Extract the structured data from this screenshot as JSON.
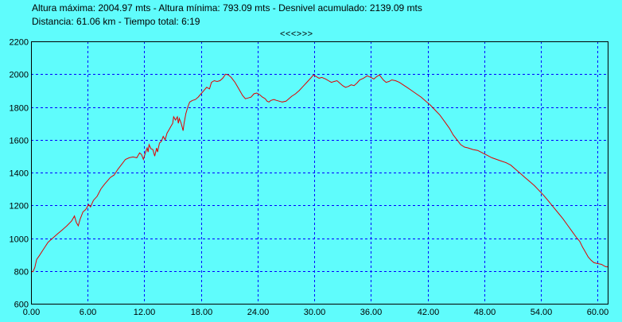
{
  "header": {
    "line1": "Altura máxima: 2004.97 mts - Altura mínima: 793.09 mts - Desnivel acumulado: 2139.09 mts",
    "line2": "Distancia: 61.06 km - Tiempo total: 6:19",
    "nav": "<<<>>>"
  },
  "chart_data": {
    "type": "line",
    "grid": true,
    "xlim": [
      0,
      61.06
    ],
    "ylim": [
      600,
      2200
    ],
    "x_ticks": [
      0,
      6,
      12,
      18,
      24,
      30,
      36,
      42,
      48,
      54,
      60
    ],
    "x_tick_labels": [
      "0.00",
      "6.00",
      "12.00",
      "18.00",
      "24.00",
      "30.00",
      "36.00",
      "42.00",
      "48.00",
      "54.00",
      "60.00"
    ],
    "y_ticks": [
      600,
      800,
      1000,
      1200,
      1400,
      1600,
      1800,
      2000,
      2200
    ],
    "y_tick_labels": [
      "600",
      "800",
      "1000",
      "1200",
      "1400",
      "1600",
      "1800",
      "2000",
      "2200"
    ],
    "colors": {
      "background": "#5ffcfc",
      "line": "#e00000",
      "grid": "#0000ff",
      "axes": "#000000"
    },
    "series": [
      {
        "values": [
          [
            0,
            800
          ],
          [
            0.2,
            795
          ],
          [
            0.4,
            820
          ],
          [
            0.6,
            870
          ],
          [
            0.9,
            895
          ],
          [
            1.3,
            930
          ],
          [
            1.8,
            975
          ],
          [
            2.3,
            1000
          ],
          [
            2.8,
            1025
          ],
          [
            3.3,
            1050
          ],
          [
            3.8,
            1075
          ],
          [
            4.3,
            1105
          ],
          [
            4.6,
            1135
          ],
          [
            4.8,
            1095
          ],
          [
            5.0,
            1075
          ],
          [
            5.2,
            1115
          ],
          [
            5.5,
            1160
          ],
          [
            5.8,
            1175
          ],
          [
            6.1,
            1205
          ],
          [
            6.3,
            1190
          ],
          [
            6.6,
            1230
          ],
          [
            7.0,
            1255
          ],
          [
            7.4,
            1300
          ],
          [
            7.8,
            1330
          ],
          [
            8.1,
            1350
          ],
          [
            8.4,
            1370
          ],
          [
            8.8,
            1385
          ],
          [
            9.2,
            1420
          ],
          [
            9.6,
            1450
          ],
          [
            10.0,
            1480
          ],
          [
            10.4,
            1490
          ],
          [
            10.8,
            1495
          ],
          [
            11.2,
            1490
          ],
          [
            11.5,
            1520
          ],
          [
            11.7,
            1510
          ],
          [
            11.9,
            1480
          ],
          [
            12.1,
            1520
          ],
          [
            12.3,
            1550
          ],
          [
            12.4,
            1525
          ],
          [
            12.5,
            1570
          ],
          [
            12.7,
            1545
          ],
          [
            12.9,
            1540
          ],
          [
            13.1,
            1500
          ],
          [
            13.3,
            1550
          ],
          [
            13.4,
            1525
          ],
          [
            13.6,
            1580
          ],
          [
            13.8,
            1590
          ],
          [
            14.0,
            1620
          ],
          [
            14.2,
            1600
          ],
          [
            14.4,
            1640
          ],
          [
            14.6,
            1660
          ],
          [
            14.8,
            1680
          ],
          [
            15.0,
            1700
          ],
          [
            15.1,
            1740
          ],
          [
            15.3,
            1720
          ],
          [
            15.5,
            1740
          ],
          [
            15.6,
            1700
          ],
          [
            15.7,
            1730
          ],
          [
            15.9,
            1700
          ],
          [
            16.1,
            1655
          ],
          [
            16.2,
            1700
          ],
          [
            16.4,
            1760
          ],
          [
            16.6,
            1800
          ],
          [
            16.8,
            1830
          ],
          [
            17.1,
            1840
          ],
          [
            17.4,
            1845
          ],
          [
            17.7,
            1860
          ],
          [
            18.0,
            1880
          ],
          [
            18.3,
            1900
          ],
          [
            18.6,
            1920
          ],
          [
            18.9,
            1910
          ],
          [
            19.1,
            1950
          ],
          [
            19.4,
            1960
          ],
          [
            19.7,
            1955
          ],
          [
            20.0,
            1960
          ],
          [
            20.3,
            1975
          ],
          [
            20.6,
            2000
          ],
          [
            20.9,
            1995
          ],
          [
            21.2,
            1980
          ],
          [
            21.6,
            1950
          ],
          [
            22.0,
            1910
          ],
          [
            22.4,
            1870
          ],
          [
            22.7,
            1850
          ],
          [
            23.0,
            1855
          ],
          [
            23.3,
            1860
          ],
          [
            23.6,
            1880
          ],
          [
            23.9,
            1885
          ],
          [
            24.2,
            1875
          ],
          [
            24.5,
            1860
          ],
          [
            24.8,
            1850
          ],
          [
            25.0,
            1835
          ],
          [
            25.2,
            1830
          ],
          [
            25.4,
            1840
          ],
          [
            25.7,
            1845
          ],
          [
            26.0,
            1840
          ],
          [
            26.3,
            1835
          ],
          [
            26.6,
            1830
          ],
          [
            27.0,
            1835
          ],
          [
            27.3,
            1850
          ],
          [
            27.6,
            1865
          ],
          [
            28.0,
            1880
          ],
          [
            28.4,
            1900
          ],
          [
            28.8,
            1925
          ],
          [
            29.2,
            1950
          ],
          [
            29.6,
            1975
          ],
          [
            29.9,
            1995
          ],
          [
            30.2,
            1985
          ],
          [
            30.5,
            1975
          ],
          [
            30.8,
            1980
          ],
          [
            31.2,
            1970
          ],
          [
            31.5,
            1960
          ],
          [
            31.8,
            1950
          ],
          [
            32.1,
            1955
          ],
          [
            32.4,
            1960
          ],
          [
            32.7,
            1945
          ],
          [
            33.0,
            1930
          ],
          [
            33.3,
            1920
          ],
          [
            33.6,
            1925
          ],
          [
            33.9,
            1935
          ],
          [
            34.2,
            1930
          ],
          [
            34.5,
            1945
          ],
          [
            34.8,
            1965
          ],
          [
            35.2,
            1975
          ],
          [
            35.6,
            1990
          ],
          [
            36.0,
            1980
          ],
          [
            36.3,
            1970
          ],
          [
            36.6,
            1985
          ],
          [
            36.9,
            1995
          ],
          [
            37.1,
            1980
          ],
          [
            37.3,
            1965
          ],
          [
            37.6,
            1950
          ],
          [
            37.9,
            1955
          ],
          [
            38.2,
            1965
          ],
          [
            38.6,
            1960
          ],
          [
            39.0,
            1950
          ],
          [
            39.4,
            1935
          ],
          [
            39.8,
            1920
          ],
          [
            40.3,
            1900
          ],
          [
            40.8,
            1880
          ],
          [
            41.3,
            1860
          ],
          [
            41.8,
            1835
          ],
          [
            42.3,
            1810
          ],
          [
            42.8,
            1780
          ],
          [
            43.3,
            1750
          ],
          [
            43.8,
            1710
          ],
          [
            44.3,
            1670
          ],
          [
            44.7,
            1630
          ],
          [
            45.1,
            1600
          ],
          [
            45.5,
            1570
          ],
          [
            45.9,
            1555
          ],
          [
            46.3,
            1550
          ],
          [
            46.8,
            1540
          ],
          [
            47.3,
            1535
          ],
          [
            47.8,
            1520
          ],
          [
            48.3,
            1505
          ],
          [
            48.8,
            1490
          ],
          [
            49.3,
            1480
          ],
          [
            49.8,
            1470
          ],
          [
            50.3,
            1460
          ],
          [
            50.8,
            1445
          ],
          [
            51.3,
            1420
          ],
          [
            51.8,
            1395
          ],
          [
            52.3,
            1370
          ],
          [
            52.8,
            1345
          ],
          [
            53.3,
            1320
          ],
          [
            53.8,
            1290
          ],
          [
            54.3,
            1260
          ],
          [
            54.8,
            1225
          ],
          [
            55.3,
            1190
          ],
          [
            55.8,
            1155
          ],
          [
            56.3,
            1120
          ],
          [
            56.8,
            1080
          ],
          [
            57.3,
            1040
          ],
          [
            57.8,
            1000
          ],
          [
            58.1,
            980
          ],
          [
            58.4,
            945
          ],
          [
            58.7,
            915
          ],
          [
            59.0,
            885
          ],
          [
            59.3,
            865
          ],
          [
            59.6,
            850
          ],
          [
            60.0,
            845
          ],
          [
            60.4,
            840
          ],
          [
            60.7,
            830
          ],
          [
            60.9,
            825
          ],
          [
            61.06,
            825
          ]
        ]
      }
    ]
  }
}
